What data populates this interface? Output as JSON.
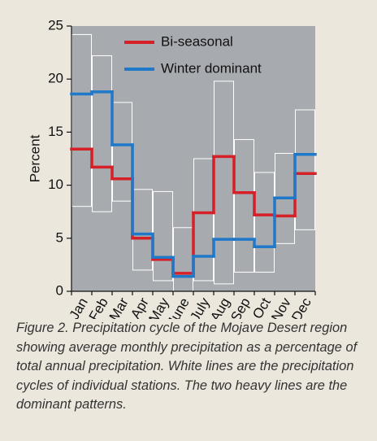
{
  "chart_data": {
    "type": "step",
    "y_label": "Percent",
    "categories": [
      "Jan",
      "Feb",
      "Mar",
      "Apr",
      "May",
      "June",
      "July",
      "Aug",
      "Sep",
      "Oct",
      "Nov",
      "Dec"
    ],
    "series": [
      {
        "name": "Bi-seasonal",
        "color": "#d62027",
        "values": [
          13.4,
          11.7,
          10.6,
          5.0,
          3.0,
          1.7,
          7.4,
          12.7,
          9.3,
          7.2,
          7.1,
          11.1
        ]
      },
      {
        "name": "Winter dominant",
        "color": "#1f78c8",
        "values": [
          18.6,
          18.8,
          13.8,
          5.4,
          3.2,
          1.4,
          3.3,
          4.9,
          4.9,
          4.2,
          8.8,
          12.9
        ]
      }
    ],
    "station_range": {
      "color": "#ffffff",
      "low": [
        8.0,
        7.5,
        8.5,
        2.0,
        1.0,
        0.0,
        1.0,
        0.7,
        1.8,
        1.8,
        4.5,
        5.8
      ],
      "high": [
        24.2,
        22.2,
        17.8,
        9.6,
        9.4,
        6.0,
        12.5,
        19.8,
        14.3,
        11.2,
        13.0,
        17.1
      ]
    },
    "ylim": [
      0,
      25
    ],
    "yticks": [
      0,
      5,
      10,
      15,
      20,
      25
    ],
    "plot_color": "#a7aaae",
    "legend": "top"
  },
  "caption": "Figure 2. Precipitation cycle of the Mojave Desert region showing average monthly precipitation as a percentage of total annual precipitation. White lines are the precipitation cycles of individual stations. The two heavy lines are the dominant patterns."
}
